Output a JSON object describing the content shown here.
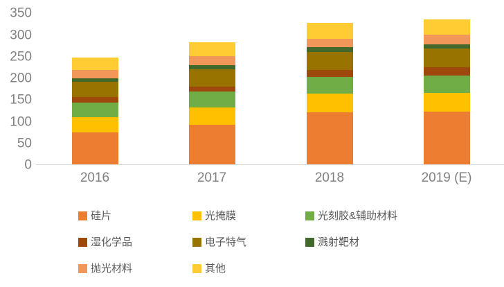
{
  "chart_data": {
    "type": "bar",
    "stacked": true,
    "title": "",
    "xlabel": "",
    "ylabel": "",
    "categories": [
      "2016",
      "2017",
      "2018",
      "2019 (E)"
    ],
    "series": [
      {
        "name": "硅片",
        "color": "#ED7D31",
        "values": [
          74,
          91,
          120,
          122
        ]
      },
      {
        "name": "光掩膜",
        "color": "#FFC000",
        "values": [
          35,
          40,
          43,
          43
        ]
      },
      {
        "name": "光刻胶&辅助材料",
        "color": "#70AD47",
        "values": [
          34,
          37,
          39,
          40
        ]
      },
      {
        "name": "湿化学品",
        "color": "#9E480E",
        "values": [
          13,
          12,
          16,
          19
        ]
      },
      {
        "name": "电子特气",
        "color": "#997300",
        "values": [
          35,
          40,
          41,
          43
        ]
      },
      {
        "name": "溅射靶材",
        "color": "#43682B",
        "values": [
          8,
          9,
          11,
          10
        ]
      },
      {
        "name": "抛光材料",
        "color": "#F1975A",
        "values": [
          19,
          21,
          20,
          23
        ]
      },
      {
        "name": "其他",
        "color": "#FFCD33",
        "values": [
          28,
          31,
          36,
          34
        ]
      }
    ],
    "totals": [
      246,
      281,
      326,
      334
    ],
    "yticks": [
      0,
      50,
      100,
      150,
      200,
      250,
      300,
      350
    ],
    "ylim": [
      0,
      350
    ],
    "grid": false,
    "legend_position": "bottom-left",
    "colors": {
      "axis_label": "#808080",
      "axis_line": "#D9D9D9",
      "legend_text": "#595959",
      "background": "#FFFFFF"
    }
  }
}
